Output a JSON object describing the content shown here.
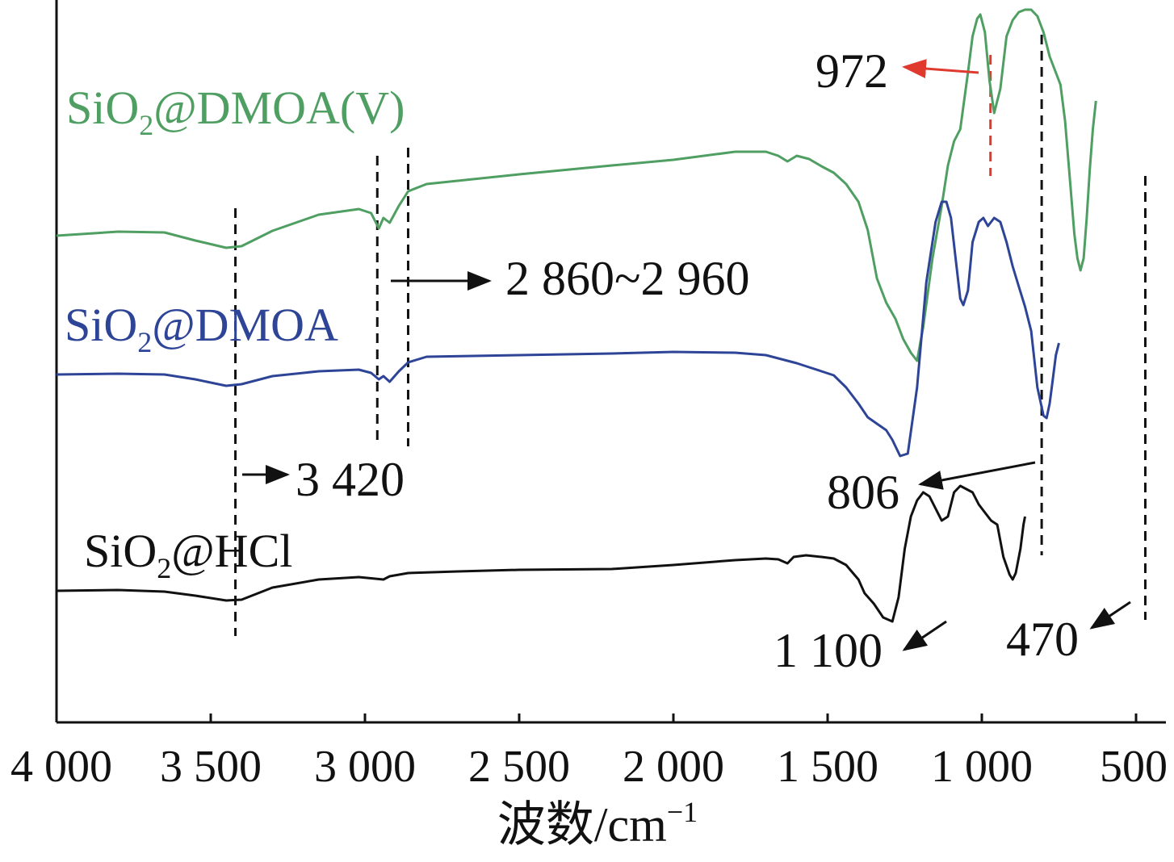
{
  "chart_data": {
    "type": "line",
    "title": "",
    "xlabel": "波数/cm",
    "xlabel_superscript": "−1",
    "ylabel": "",
    "xlim": [
      4000,
      450
    ],
    "x_reversed": true,
    "grid": false,
    "x_ticks": [
      {
        "value": 4000,
        "label": "4 000"
      },
      {
        "value": 3500,
        "label": "3 500"
      },
      {
        "value": 3000,
        "label": "3 000"
      },
      {
        "value": 2500,
        "label": "2 500"
      },
      {
        "value": 2000,
        "label": "2 000"
      },
      {
        "value": 1500,
        "label": "1 500"
      },
      {
        "value": 1000,
        "label": "1 000"
      },
      {
        "value": 500,
        "label": "500"
      }
    ],
    "series": [
      {
        "name_main": "SiO",
        "name_sub": "2",
        "name_rest": "@DMOA(V)",
        "color": "#4f9e62",
        "points": [
          [
            4000,
            292
          ],
          [
            3800,
            287
          ],
          [
            3650,
            288
          ],
          [
            3550,
            298
          ],
          [
            3450,
            307
          ],
          [
            3400,
            305
          ],
          [
            3300,
            286
          ],
          [
            3150,
            266
          ],
          [
            3020,
            259
          ],
          [
            2980,
            264
          ],
          [
            2955,
            283
          ],
          [
            2940,
            270
          ],
          [
            2920,
            276
          ],
          [
            2890,
            255
          ],
          [
            2860,
            237
          ],
          [
            2800,
            228
          ],
          [
            2500,
            216
          ],
          [
            2200,
            205
          ],
          [
            2000,
            198
          ],
          [
            1800,
            188
          ],
          [
            1700,
            188
          ],
          [
            1660,
            193
          ],
          [
            1630,
            200
          ],
          [
            1600,
            193
          ],
          [
            1560,
            197
          ],
          [
            1520,
            206
          ],
          [
            1480,
            214
          ],
          [
            1440,
            228
          ],
          [
            1400,
            250
          ],
          [
            1370,
            285
          ],
          [
            1340,
            345
          ],
          [
            1310,
            375
          ],
          [
            1280,
            395
          ],
          [
            1255,
            420
          ],
          [
            1230,
            437
          ],
          [
            1210,
            447
          ],
          [
            1190,
            405
          ],
          [
            1160,
            320
          ],
          [
            1130,
            255
          ],
          [
            1110,
            205
          ],
          [
            1090,
            175
          ],
          [
            1070,
            160
          ],
          [
            1045,
            90
          ],
          [
            1030,
            45
          ],
          [
            1015,
            23
          ],
          [
            1005,
            18
          ],
          [
            990,
            40
          ],
          [
            975,
            100
          ],
          [
            960,
            140
          ],
          [
            940,
            110
          ],
          [
            920,
            45
          ],
          [
            900,
            25
          ],
          [
            880,
            15
          ],
          [
            860,
            12
          ],
          [
            840,
            12
          ],
          [
            820,
            20
          ],
          [
            800,
            40
          ],
          [
            780,
            70
          ],
          [
            760,
            90
          ],
          [
            745,
            105
          ],
          [
            730,
            150
          ],
          [
            715,
            220
          ],
          [
            700,
            290
          ],
          [
            690,
            320
          ],
          [
            680,
            335
          ],
          [
            670,
            320
          ],
          [
            660,
            270
          ],
          [
            650,
            210
          ],
          [
            640,
            160
          ],
          [
            630,
            125
          ]
        ]
      },
      {
        "name_main": "SiO",
        "name_sub": "2",
        "name_rest": "@DMOA",
        "color": "#2e4496",
        "points": [
          [
            4000,
            464
          ],
          [
            3800,
            463
          ],
          [
            3650,
            464
          ],
          [
            3550,
            470
          ],
          [
            3450,
            478
          ],
          [
            3400,
            476
          ],
          [
            3300,
            466
          ],
          [
            3150,
            460
          ],
          [
            3020,
            458
          ],
          [
            2980,
            462
          ],
          [
            2955,
            470
          ],
          [
            2940,
            466
          ],
          [
            2920,
            473
          ],
          [
            2890,
            460
          ],
          [
            2860,
            449
          ],
          [
            2800,
            442
          ],
          [
            2500,
            440
          ],
          [
            2200,
            438
          ],
          [
            2000,
            436
          ],
          [
            1800,
            437
          ],
          [
            1700,
            440
          ],
          [
            1640,
            446
          ],
          [
            1600,
            450
          ],
          [
            1560,
            455
          ],
          [
            1520,
            460
          ],
          [
            1480,
            465
          ],
          [
            1440,
            480
          ],
          [
            1400,
            500
          ],
          [
            1370,
            517
          ],
          [
            1340,
            525
          ],
          [
            1310,
            533
          ],
          [
            1290,
            545
          ],
          [
            1265,
            565
          ],
          [
            1240,
            562
          ],
          [
            1210,
            480
          ],
          [
            1180,
            350
          ],
          [
            1150,
            275
          ],
          [
            1130,
            250
          ],
          [
            1115,
            250
          ],
          [
            1100,
            270
          ],
          [
            1085,
            320
          ],
          [
            1070,
            370
          ],
          [
            1060,
            378
          ],
          [
            1045,
            360
          ],
          [
            1030,
            300
          ],
          [
            1010,
            275
          ],
          [
            995,
            270
          ],
          [
            980,
            280
          ],
          [
            960,
            270
          ],
          [
            940,
            275
          ],
          [
            920,
            300
          ],
          [
            900,
            330
          ],
          [
            880,
            355
          ],
          [
            860,
            380
          ],
          [
            840,
            410
          ],
          [
            820,
            480
          ],
          [
            800,
            515
          ],
          [
            790,
            518
          ],
          [
            780,
            500
          ],
          [
            770,
            470
          ],
          [
            760,
            440
          ],
          [
            750,
            425
          ]
        ]
      },
      {
        "name_main": "SiO",
        "name_sub": "2",
        "name_rest": "@HCl",
        "color": "#111111",
        "points": [
          [
            4000,
            732
          ],
          [
            3800,
            731
          ],
          [
            3650,
            733
          ],
          [
            3550,
            738
          ],
          [
            3450,
            744
          ],
          [
            3400,
            743
          ],
          [
            3300,
            728
          ],
          [
            3150,
            718
          ],
          [
            3020,
            715
          ],
          [
            2940,
            718
          ],
          [
            2920,
            714
          ],
          [
            2860,
            710
          ],
          [
            2700,
            708
          ],
          [
            2500,
            706
          ],
          [
            2200,
            705
          ],
          [
            2000,
            700
          ],
          [
            1800,
            694
          ],
          [
            1700,
            692
          ],
          [
            1660,
            693
          ],
          [
            1630,
            698
          ],
          [
            1610,
            690
          ],
          [
            1570,
            688
          ],
          [
            1520,
            690
          ],
          [
            1480,
            692
          ],
          [
            1440,
            700
          ],
          [
            1400,
            718
          ],
          [
            1380,
            735
          ],
          [
            1350,
            748
          ],
          [
            1320,
            765
          ],
          [
            1290,
            770
          ],
          [
            1270,
            740
          ],
          [
            1250,
            680
          ],
          [
            1230,
            640
          ],
          [
            1210,
            620
          ],
          [
            1190,
            610
          ],
          [
            1170,
            615
          ],
          [
            1150,
            630
          ],
          [
            1130,
            645
          ],
          [
            1110,
            640
          ],
          [
            1090,
            610
          ],
          [
            1070,
            602
          ],
          [
            1050,
            606
          ],
          [
            1030,
            610
          ],
          [
            1010,
            625
          ],
          [
            990,
            635
          ],
          [
            970,
            645
          ],
          [
            950,
            650
          ],
          [
            930,
            690
          ],
          [
            910,
            712
          ],
          [
            900,
            718
          ],
          [
            890,
            710
          ],
          [
            875,
            680
          ],
          [
            865,
            650
          ],
          [
            860,
            640
          ]
        ]
      }
    ],
    "dashed_lines": [
      {
        "x": 3420,
        "color": "#111111",
        "y_top": 258,
        "y_bottom": 788
      },
      {
        "x": 2960,
        "color": "#111111",
        "y_top": 193,
        "y_bottom": 553
      },
      {
        "x": 2860,
        "color": "#111111",
        "y_top": 183,
        "y_bottom": 553
      },
      {
        "x": 806,
        "color": "#111111",
        "y_top": 43,
        "y_bottom": 688
      },
      {
        "x": 470,
        "color": "#111111",
        "y_top": 218,
        "y_bottom": 768
      },
      {
        "x": 972,
        "color": "#e03a2f",
        "y_top": 68,
        "y_bottom": 218
      }
    ],
    "annotations": [
      {
        "text": "972",
        "color": "#e03a2f"
      },
      {
        "text": "2 860~2 960",
        "color": "#111111"
      },
      {
        "text": "3 420",
        "color": "#111111"
      },
      {
        "text": "806",
        "color": "#111111"
      },
      {
        "text": "1 100",
        "color": "#111111"
      },
      {
        "text": "470",
        "color": "#111111"
      }
    ]
  }
}
